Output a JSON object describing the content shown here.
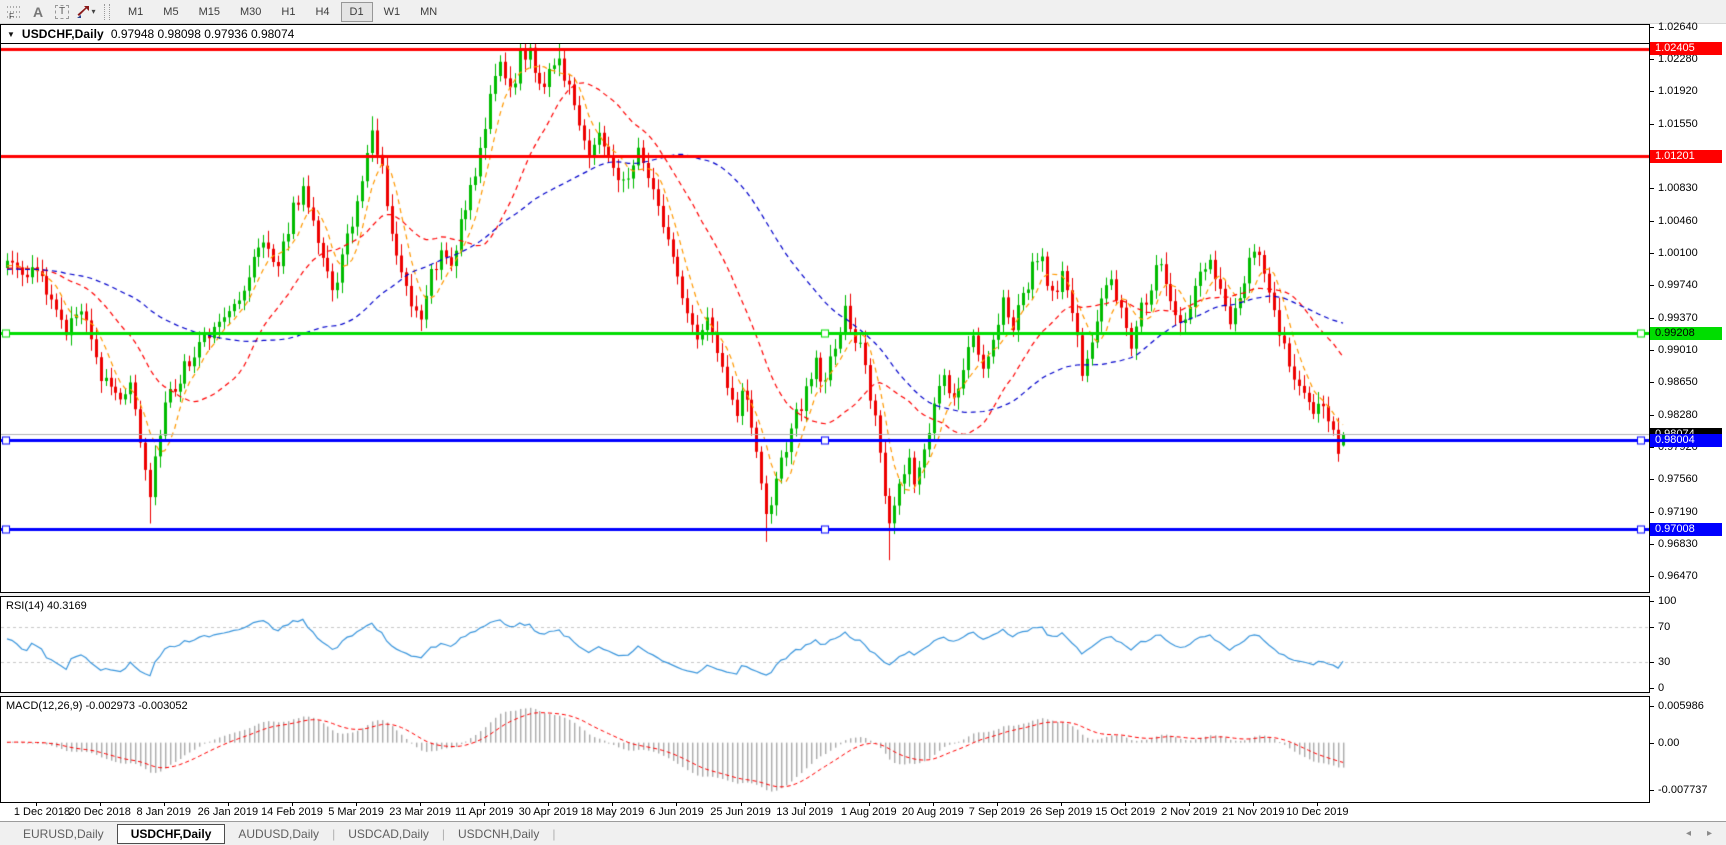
{
  "toolbar": {
    "tools": [
      {
        "name": "fibonacci-retracement",
        "glyph": "F"
      },
      {
        "name": "text",
        "glyph": "A"
      },
      {
        "name": "text-label",
        "glyph": "T"
      },
      {
        "name": "arrows",
        "glyph": ""
      }
    ],
    "dropdown_caret": "▾",
    "timeframes": [
      "M1",
      "M5",
      "M15",
      "M30",
      "H1",
      "H4",
      "D1",
      "W1",
      "MN"
    ],
    "active_timeframe": "D1"
  },
  "main_chart": {
    "collapse_glyph": "▼",
    "symbol_label": "USDCHF,Daily",
    "ohlc_text": "0.97948 0.98098 0.97936 0.98074"
  },
  "rsi_panel": {
    "label": "RSI(14) 40.3169"
  },
  "macd_panel": {
    "label": "MACD(12,26,9) -0.002973 -0.003052"
  },
  "tab_bar": {
    "tabs": [
      "EURUSD,Daily",
      "USDCHF,Daily",
      "AUDUSD,Daily",
      "USDCAD,Daily",
      "USDCNH,Daily"
    ],
    "active_tab": "USDCHF,Daily",
    "scroll_left_glyph": "◂",
    "scroll_right_glyph": "▸"
  },
  "chart_data": [
    {
      "type": "candlestick",
      "symbol": "USDCHF",
      "timeframe": "Daily",
      "open": 0.97948,
      "high": 0.98098,
      "low": 0.97936,
      "close": 0.98074,
      "candle_up_color": "#00bb00",
      "candle_down_color": "#ee0000",
      "y_range": [
        0.96301,
        1.0246
      ],
      "y_ticks": [
        "1.02640",
        "1.02280",
        "1.01920",
        "1.01550",
        "1.00830",
        "1.00460",
        "1.00100",
        "0.99740",
        "0.99370",
        "0.99010",
        "0.98650",
        "0.98280",
        "0.97920",
        "0.97560",
        "0.97190",
        "0.96830",
        "0.96470"
      ],
      "x_labels": [
        "1 Dec 2018",
        "20 Dec 2018",
        "8 Jan 2019",
        "26 Jan 2019",
        "14 Feb 2019",
        "5 Mar 2019",
        "23 Mar 2019",
        "11 Apr 2019",
        "30 Apr 2019",
        "18 May 2019",
        "6 Jun 2019",
        "25 Jun 2019",
        "13 Jul 2019",
        "1 Aug 2019",
        "20 Aug 2019",
        "7 Sep 2019",
        "26 Sep 2019",
        "15 Oct 2019",
        "2 Nov 2019",
        "21 Nov 2019",
        "10 Dec 2019"
      ],
      "levels": [
        {
          "name": "resistance-upper",
          "price": 1.02405,
          "label": "1.02405",
          "color": "#ff0000",
          "width": 3,
          "selected": false,
          "badge_bg": "#ff0000",
          "badge_fg": "#ffffff"
        },
        {
          "name": "resistance-mid",
          "price": 1.01201,
          "label": "1.01201",
          "color": "#ff0000",
          "width": 3,
          "selected": false,
          "badge_bg": "#ff0000",
          "badge_fg": "#ffffff"
        },
        {
          "name": "pivot-green",
          "price": 0.99208,
          "label": "0.99208",
          "color": "#00dd00",
          "width": 3,
          "selected": true,
          "badge_bg": "#00dd00",
          "badge_fg": "#000000"
        },
        {
          "name": "support-upper",
          "price": 0.98004,
          "label": "0.98004",
          "color": "#0000ff",
          "width": 3,
          "selected": true,
          "badge_bg": "#0000ff",
          "badge_fg": "#ffffff"
        },
        {
          "name": "support-lower",
          "price": 0.97008,
          "label": "0.97008",
          "color": "#0000ff",
          "width": 3,
          "selected": true,
          "badge_bg": "#0000ff",
          "badge_fg": "#ffffff"
        },
        {
          "name": "last-price",
          "price": 0.98074,
          "label": "0.98074",
          "color": "#b4b4b4",
          "width": 1,
          "selected": false,
          "badge_bg": "#000000",
          "badge_fg": "#ffffff"
        }
      ],
      "moving_averages": [
        {
          "period": 6,
          "color": "#ff9900",
          "style": "dashed"
        },
        {
          "period": 21,
          "color": "#ff0000",
          "style": "dashed"
        },
        {
          "period": 52,
          "color": "#0000cc",
          "style": "dashed"
        }
      ],
      "price_path": [
        [
          0,
          0.9993
        ],
        [
          3,
          0.9958
        ],
        [
          6,
          0.9922
        ],
        [
          9,
          0.9952
        ],
        [
          13,
          0.9868
        ],
        [
          16,
          0.985
        ],
        [
          19,
          0.9862
        ],
        [
          21,
          0.98
        ],
        [
          23,
          0.9742
        ],
        [
          24,
          0.9778
        ],
        [
          26,
          0.9842
        ],
        [
          30,
          0.988
        ],
        [
          34,
          0.9916
        ],
        [
          39,
          0.9948
        ],
        [
          43,
          0.9985
        ],
        [
          46,
          1.0022
        ],
        [
          49,
          0.9992
        ],
        [
          52,
          1.006
        ],
        [
          54,
          1.0088
        ],
        [
          56,
          1.0052
        ],
        [
          58,
          1.0002
        ],
        [
          60,
          0.9968
        ],
        [
          62,
          1.0005
        ],
        [
          64,
          1.005
        ],
        [
          66,
          1.0092
        ],
        [
          68,
          1.015
        ],
        [
          70,
          1.0102
        ],
        [
          72,
          1.0042
        ],
        [
          74,
          0.9992
        ],
        [
          76,
          0.9952
        ],
        [
          78,
          0.993
        ],
        [
          80,
          0.999
        ],
        [
          82,
          1.0012
        ],
        [
          84,
          0.9992
        ],
        [
          86,
          1.0042
        ],
        [
          88,
          1.0082
        ],
        [
          90,
          1.013
        ],
        [
          92,
          1.0182
        ],
        [
          94,
          1.0222
        ],
        [
          96,
          1.0192
        ],
        [
          98,
          1.023
        ],
        [
          100,
          1.0236
        ],
        [
          102,
          1.0192
        ],
        [
          104,
          1.0216
        ],
        [
          106,
          1.0232
        ],
        [
          108,
          1.0192
        ],
        [
          110,
          1.0152
        ],
        [
          112,
          1.0128
        ],
        [
          114,
          1.0152
        ],
        [
          116,
          1.0122
        ],
        [
          118,
          1.0088
        ],
        [
          120,
          1.0092
        ],
        [
          122,
          1.013
        ],
        [
          124,
          1.0096
        ],
        [
          126,
          1.0056
        ],
        [
          128,
          1.0022
        ],
        [
          130,
          0.9988
        ],
        [
          132,
          0.9942
        ],
        [
          134,
          0.9906
        ],
        [
          136,
          0.9936
        ],
        [
          138,
          0.9896
        ],
        [
          140,
          0.9852
        ],
        [
          142,
          0.9822
        ],
        [
          143,
          0.9856
        ],
        [
          145,
          0.9822
        ],
        [
          147,
          0.9752
        ],
        [
          148,
          0.9716
        ],
        [
          150,
          0.9752
        ],
        [
          152,
          0.9792
        ],
        [
          154,
          0.9826
        ],
        [
          156,
          0.9852
        ],
        [
          158,
          0.9886
        ],
        [
          160,
          0.9862
        ],
        [
          162,
          0.9912
        ],
        [
          164,
          0.9946
        ],
        [
          166,
          0.9916
        ],
        [
          168,
          0.9886
        ],
        [
          170,
          0.9822
        ],
        [
          172,
          0.9742
        ],
        [
          173,
          0.9705
        ],
        [
          175,
          0.9746
        ],
        [
          177,
          0.9782
        ],
        [
          178,
          0.9746
        ],
        [
          180,
          0.9792
        ],
        [
          182,
          0.9842
        ],
        [
          184,
          0.9872
        ],
        [
          186,
          0.9846
        ],
        [
          188,
          0.9886
        ],
        [
          190,
          0.9912
        ],
        [
          192,
          0.9876
        ],
        [
          194,
          0.9916
        ],
        [
          196,
          0.9952
        ],
        [
          198,
          0.9926
        ],
        [
          200,
          0.9962
        ],
        [
          202,
          0.9992
        ],
        [
          204,
          1.0002
        ],
        [
          206,
          0.9962
        ],
        [
          208,
          0.9988
        ],
        [
          210,
          0.9942
        ],
        [
          212,
          0.9882
        ],
        [
          214,
          0.9916
        ],
        [
          216,
          0.9962
        ],
        [
          218,
          0.9978
        ],
        [
          220,
          0.9946
        ],
        [
          222,
          0.9906
        ],
        [
          224,
          0.9946
        ],
        [
          226,
          0.9978
        ],
        [
          228,
          1.0002
        ],
        [
          230,
          0.9966
        ],
        [
          232,
          0.9932
        ],
        [
          234,
          0.9956
        ],
        [
          236,
          0.9992
        ],
        [
          238,
          1.0008
        ],
        [
          240,
          0.9972
        ],
        [
          242,
          0.9932
        ],
        [
          244,
          0.9962
        ],
        [
          246,
          1.0002
        ],
        [
          247,
          1.0022
        ],
        [
          249,
          0.9982
        ],
        [
          251,
          0.9942
        ],
        [
          253,
          0.9902
        ],
        [
          255,
          0.9872
        ],
        [
          257,
          0.9846
        ],
        [
          259,
          0.9826
        ],
        [
          261,
          0.9842
        ],
        [
          263,
          0.9812
        ],
        [
          264,
          0.979
        ],
        [
          265,
          0.9807
        ]
      ],
      "wick_low_extra": {
        "23": 0.0018,
        "148": 0.0024,
        "173": 0.0028
      },
      "wick_high_extra": {
        "68": 0.0006,
        "100": 0.001,
        "106": 0.0008
      }
    },
    {
      "type": "line",
      "name": "RSI",
      "params": "14",
      "label": "RSI(14) 40.3169",
      "last_value": 40.3169,
      "color": "#3a96dd",
      "levels": [
        70,
        30
      ],
      "grid_color": "#c8c8c8",
      "y_ticks": [
        "100",
        "70",
        "30",
        "0"
      ],
      "y_range": [
        0,
        100
      ]
    },
    {
      "type": "macd",
      "name": "MACD",
      "params": "12,26,9",
      "label": "MACD(12,26,9) -0.002973 -0.003052",
      "macd_value": -0.002973,
      "signal_value": -0.003052,
      "histogram_color": "#ababab",
      "signal_color": "#ff0000",
      "y_ticks": [
        "0.005986",
        "0.00",
        "-0.007737"
      ]
    }
  ]
}
